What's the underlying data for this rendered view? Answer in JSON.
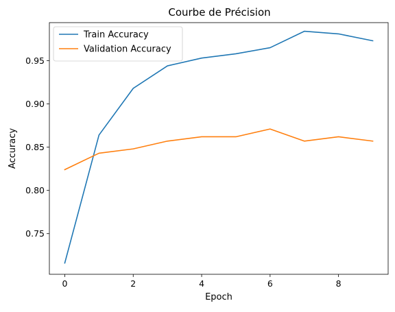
{
  "chart_data": {
    "type": "line",
    "title": "Courbe de Précision",
    "xlabel": "Epoch",
    "ylabel": "Accuracy",
    "x": [
      0,
      1,
      2,
      3,
      4,
      5,
      6,
      7,
      8,
      9
    ],
    "xlim": [
      -0.45,
      9.45
    ],
    "ylim": [
      0.703,
      0.994
    ],
    "xticks": [
      0,
      2,
      4,
      6,
      8
    ],
    "yticks": [
      0.75,
      0.8,
      0.85,
      0.9,
      0.95
    ],
    "xtick_labels": [
      "0",
      "2",
      "4",
      "6",
      "8"
    ],
    "ytick_labels": [
      "0.75",
      "0.80",
      "0.85",
      "0.90",
      "0.95"
    ],
    "grid": false,
    "legend_position": "top-left",
    "series": [
      {
        "name": "Train Accuracy",
        "color": "#1f77b4",
        "values": [
          0.716,
          0.864,
          0.918,
          0.944,
          0.953,
          0.958,
          0.965,
          0.984,
          0.981,
          0.973
        ]
      },
      {
        "name": "Validation Accuracy",
        "color": "#ff7f0e",
        "values": [
          0.824,
          0.843,
          0.848,
          0.857,
          0.862,
          0.862,
          0.871,
          0.857,
          0.862,
          0.857
        ]
      }
    ]
  }
}
